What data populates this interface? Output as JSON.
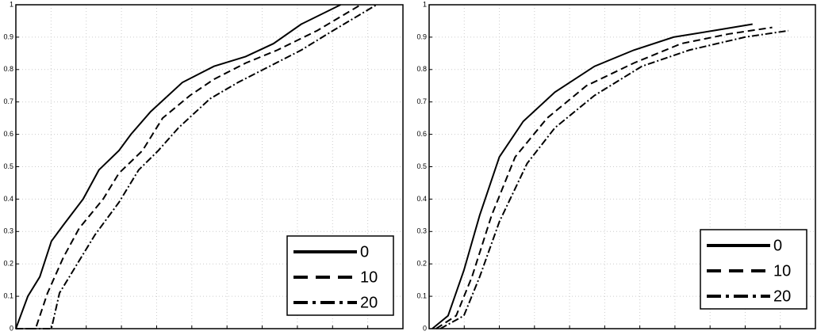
{
  "chart_data": [
    {
      "type": "line",
      "xlim": [
        0,
        11
      ],
      "ylim": [
        0,
        1
      ],
      "xticks": [
        1,
        2,
        3,
        4,
        5,
        6,
        7,
        8,
        9,
        10
      ],
      "yticks": [
        0,
        0.1,
        0.2,
        0.3,
        0.4,
        0.5,
        0.6,
        0.7,
        0.8,
        0.9,
        1
      ],
      "grid": true,
      "legend": "lower right",
      "series": [
        {
          "name": "0",
          "color": "#000000",
          "dash": "solid",
          "x": [
            0,
            0.34,
            0.68,
            1.01,
            1.35,
            1.91,
            2.36,
            2.93,
            3.27,
            3.83,
            4.73,
            5.63,
            6.53,
            7.32,
            8.11,
            9.23
          ],
          "values": [
            0,
            0.1,
            0.16,
            0.27,
            0.32,
            0.4,
            0.49,
            0.55,
            0.6,
            0.67,
            0.76,
            0.81,
            0.84,
            0.88,
            0.94,
            1
          ]
        },
        {
          "name": "10",
          "color": "#000000",
          "dash": "dashed",
          "x": [
            0,
            0.56,
            0.9,
            1.35,
            1.8,
            2.48,
            2.93,
            3.6,
            4.17,
            4.95,
            5.63,
            6.53,
            7.43,
            8.56,
            9.8
          ],
          "values": [
            0,
            0,
            0.11,
            0.22,
            0.31,
            0.4,
            0.48,
            0.55,
            0.65,
            0.72,
            0.77,
            0.82,
            0.86,
            0.92,
            1
          ]
        },
        {
          "name": "20",
          "color": "#000000",
          "dash": "dashdot",
          "x": [
            0,
            1.01,
            1.24,
            1.8,
            2.25,
            2.93,
            3.49,
            4.05,
            4.62,
            5.52,
            6.31,
            7.21,
            8.11,
            9.01,
            10.25
          ],
          "values": [
            0,
            0,
            0.11,
            0.21,
            0.29,
            0.39,
            0.49,
            0.55,
            0.62,
            0.71,
            0.76,
            0.81,
            0.86,
            0.92,
            1
          ]
        }
      ]
    },
    {
      "type": "line",
      "xlim": [
        0,
        11
      ],
      "ylim": [
        0,
        1
      ],
      "xticks": [
        1,
        2,
        3,
        4,
        5,
        6,
        7,
        8,
        9,
        10
      ],
      "yticks": [
        0,
        0.1,
        0.2,
        0.3,
        0.4,
        0.5,
        0.6,
        0.7,
        0.8,
        0.9,
        1
      ],
      "grid": true,
      "legend": "lower right",
      "series": [
        {
          "name": "0",
          "color": "#000000",
          "dash": "solid",
          "x": [
            0.09,
            0.54,
            0.99,
            1.44,
            2.0,
            2.68,
            3.58,
            4.71,
            5.83,
            6.96,
            8.09,
            9.21
          ],
          "values": [
            0,
            0.04,
            0.18,
            0.35,
            0.53,
            0.64,
            0.73,
            0.81,
            0.86,
            0.9,
            0.92,
            0.94
          ]
        },
        {
          "name": "10",
          "color": "#000000",
          "dash": "dashed",
          "x": [
            0.2,
            0.77,
            1.22,
            1.78,
            2.45,
            3.36,
            4.48,
            5.83,
            7.18,
            8.54,
            9.77
          ],
          "values": [
            0,
            0.04,
            0.16,
            0.35,
            0.53,
            0.65,
            0.75,
            0.82,
            0.88,
            0.91,
            0.93
          ]
        },
        {
          "name": "20",
          "color": "#000000",
          "dash": "dashdot",
          "x": [
            0.32,
            0.99,
            1.44,
            2.0,
            2.79,
            3.58,
            4.71,
            6.06,
            7.41,
            8.99,
            10.23
          ],
          "values": [
            0,
            0.04,
            0.16,
            0.33,
            0.51,
            0.62,
            0.72,
            0.81,
            0.86,
            0.9,
            0.92
          ]
        }
      ]
    }
  ]
}
